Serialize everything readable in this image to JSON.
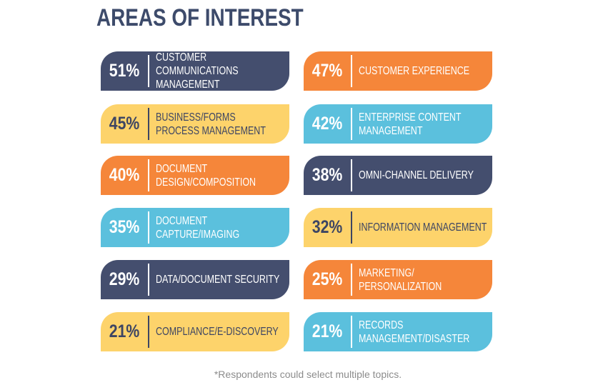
{
  "title": "AREAS OF INTEREST",
  "footnote": "*Respondents could select multiple topics.",
  "colors": {
    "navy": "#444e6e",
    "orange": "#f5863a",
    "yellow": "#fdd36b",
    "blue": "#5bc0dd",
    "title": "#3d4b6b"
  },
  "chart_data": {
    "type": "table",
    "title": "AREAS OF INTEREST",
    "unit": "%",
    "items": [
      {
        "percent": "51%",
        "value": 51,
        "label": "CUSTOMER COMMUNICATIONS\nMANAGEMENT",
        "color": "navy"
      },
      {
        "percent": "47%",
        "value": 47,
        "label": "CUSTOMER EXPERIENCE",
        "color": "orange"
      },
      {
        "percent": "45%",
        "value": 45,
        "label": "BUSINESS/FORMS\nPROCESS MANAGEMENT",
        "color": "yellow"
      },
      {
        "percent": "42%",
        "value": 42,
        "label": "ENTERPRISE CONTENT\nMANAGEMENT",
        "color": "blue"
      },
      {
        "percent": "40%",
        "value": 40,
        "label": "DOCUMENT\nDESIGN/COMPOSITION",
        "color": "orange"
      },
      {
        "percent": "38%",
        "value": 38,
        "label": "OMNI-CHANNEL DELIVERY",
        "color": "navy"
      },
      {
        "percent": "35%",
        "value": 35,
        "label": "DOCUMENT\nCAPTURE/IMAGING",
        "color": "blue"
      },
      {
        "percent": "32%",
        "value": 32,
        "label": "INFORMATION MANAGEMENT",
        "color": "yellow"
      },
      {
        "percent": "29%",
        "value": 29,
        "label": "DATA/DOCUMENT SECURITY",
        "color": "navy"
      },
      {
        "percent": "25%",
        "value": 25,
        "label": "MARKETING/\nPERSONALIZATION",
        "color": "orange"
      },
      {
        "percent": "21%",
        "value": 21,
        "label": "COMPLIANCE/E-DISCOVERY",
        "color": "yellow"
      },
      {
        "percent": "21%",
        "value": 21,
        "label": "RECORDS\nMANAGEMENT/DISASTER",
        "color": "blue"
      }
    ]
  }
}
